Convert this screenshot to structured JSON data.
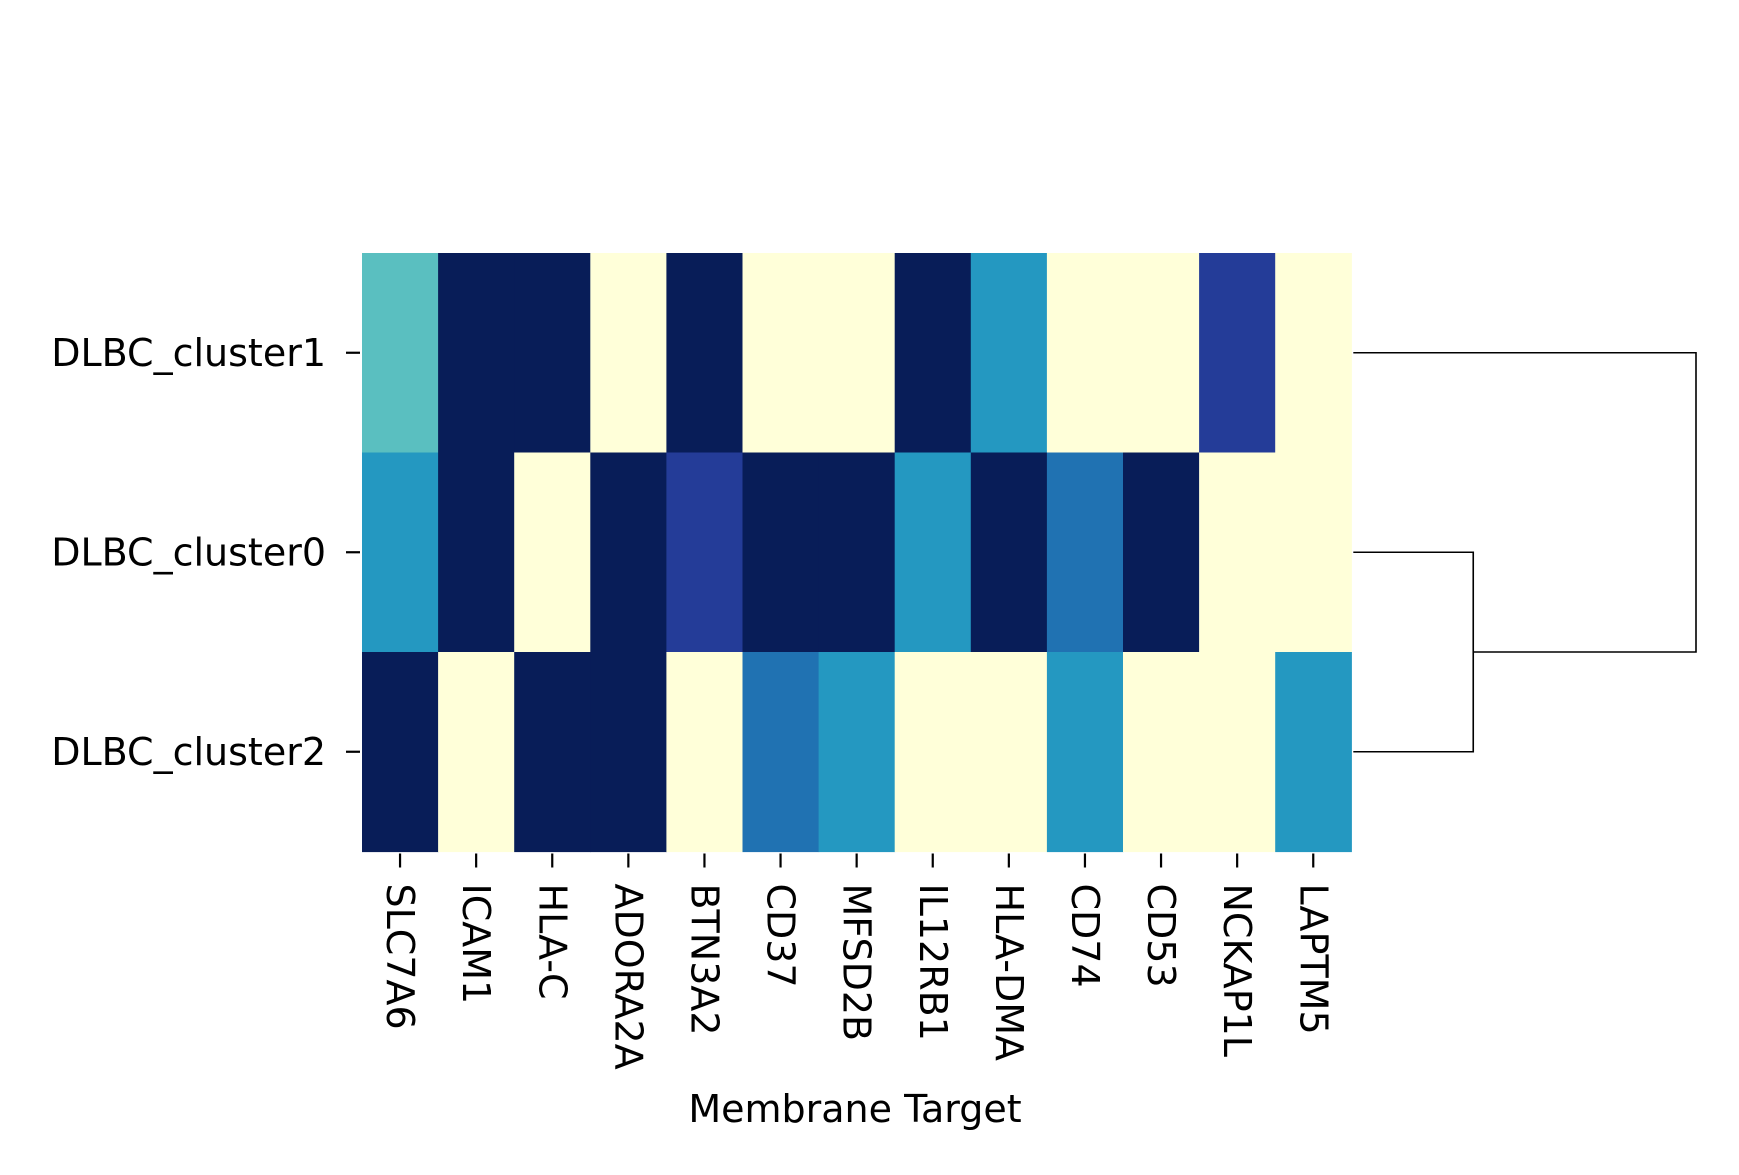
{
  "chart_data": {
    "type": "heatmap",
    "title": "",
    "xlabel": "Membrane Target",
    "ylabel": "",
    "columns": [
      "SLC7A6",
      "ICAM1",
      "HLA-C",
      "ADORA2A",
      "BTN3A2",
      "CD37",
      "MFSD2B",
      "IL12RB1",
      "HLA-DMA",
      "CD74",
      "CD53",
      "NCKAP1L",
      "LAPTM5"
    ],
    "rows": [
      "DLBC_cluster1",
      "DLBC_cluster0",
      "DLBC_cluster2"
    ],
    "values": [
      [
        0.45,
        1.0,
        1.0,
        0.0,
        1.0,
        0.0,
        0.0,
        1.0,
        0.6,
        0.0,
        0.0,
        0.85,
        0.0
      ],
      [
        0.6,
        1.0,
        0.0,
        1.0,
        0.85,
        1.0,
        1.0,
        0.6,
        1.0,
        0.7,
        1.0,
        0.0,
        0.0
      ],
      [
        1.0,
        0.0,
        1.0,
        1.0,
        0.0,
        0.7,
        0.6,
        0.0,
        0.0,
        0.6,
        0.0,
        0.0,
        0.6
      ]
    ],
    "colormap": "YlGnBu",
    "colorbar": false,
    "row_dendrogram": {
      "side": "right",
      "merges": [
        {
          "left": "DLBC_cluster0",
          "right": "DLBC_cluster2",
          "height": 0.35
        },
        {
          "left": "DLBC_cluster1",
          "right": "DLBC_cluster0+DLBC_cluster2",
          "height": 1.0
        }
      ]
    }
  }
}
